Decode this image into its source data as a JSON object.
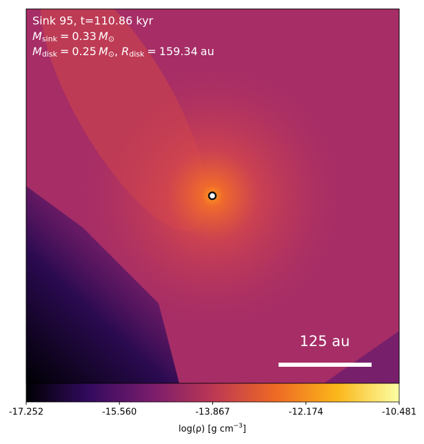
{
  "chart_data": {
    "type": "image",
    "title": "Sink 95, t=110.86 kyr",
    "m_sink": {
      "symbol": "M",
      "sub": "sink",
      "sign": "=",
      "value": 0.33,
      "unit": "M",
      "unit_sub": "⊙"
    },
    "m_disk": {
      "symbol": "M",
      "sub": "disk",
      "sign": "=",
      "value": 0.25,
      "unit": "M",
      "unit_sub": "⊙",
      "sep": ","
    },
    "r_disk": {
      "symbol": "R",
      "sub": "disk",
      "sign": "=",
      "value": 159.34,
      "unit": "au"
    },
    "scale_bar": {
      "label": "125 au"
    },
    "colorbar": {
      "label": {
        "text": "log(ρ) [g cm",
        "sup": "−3",
        "close": "]"
      },
      "lim": [
        -17.252,
        -10.481
      ],
      "ticks": [
        {
          "value": -17.252,
          "label": "-17.252"
        },
        {
          "value": -15.56,
          "label": "-15.560"
        },
        {
          "value": -13.867,
          "label": "-13.867"
        },
        {
          "value": -12.174,
          "label": "-12.174"
        },
        {
          "value": -10.481,
          "label": "-10.481"
        }
      ],
      "colormap": [
        "#000004",
        "#320a5e",
        "#781c6d",
        "#bc3754",
        "#ed6925",
        "#fbb61a",
        "#fcffa4"
      ]
    }
  }
}
